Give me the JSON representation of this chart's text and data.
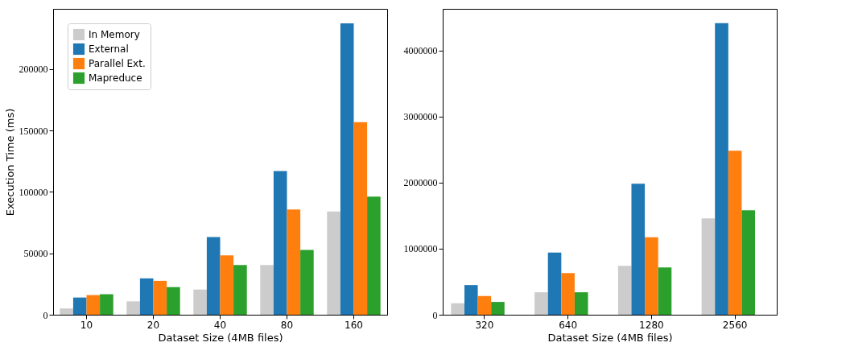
{
  "chart_data": [
    {
      "type": "bar",
      "xlabel": "Dataset Size (4MB files)",
      "ylabel": "Execution Time (ms)",
      "categories": [
        "10",
        "20",
        "40",
        "80",
        "160"
      ],
      "ylim": [
        0,
        249000
      ],
      "yticks": [
        0,
        50000,
        100000,
        150000,
        200000
      ],
      "grid": false,
      "legend": "top left",
      "series": [
        {
          "name": "In Memory",
          "color": "#cccccc",
          "values": [
            5100,
            10900,
            20500,
            40500,
            84000
          ]
        },
        {
          "name": "External",
          "color": "#1f77b4",
          "values": [
            14000,
            29600,
            63200,
            116900,
            237200
          ]
        },
        {
          "name": "Parallel Ext.",
          "color": "#ff7f0e",
          "values": [
            16000,
            27600,
            48300,
            85700,
            156800
          ]
        },
        {
          "name": "Mapreduce",
          "color": "#2ca02c",
          "values": [
            16700,
            22500,
            40500,
            52800,
            96200
          ]
        }
      ]
    },
    {
      "type": "bar",
      "xlabel": "Dataset Size (4MB files)",
      "categories": [
        "320",
        "640",
        "1280",
        "2560"
      ],
      "ylim": [
        0,
        4630000
      ],
      "yticks": [
        0,
        1000000,
        2000000,
        3000000,
        4000000
      ],
      "grid": false,
      "legend": "top left",
      "series": [
        {
          "name": "In Memory",
          "color": "#cccccc",
          "values": [
            174000,
            340000,
            740000,
            1460000
          ]
        },
        {
          "name": "External",
          "color": "#1f77b4",
          "values": [
            449000,
            942000,
            1982000,
            4413000
          ]
        },
        {
          "name": "Parallel Ext.",
          "color": "#ff7f0e",
          "values": [
            283000,
            631000,
            1173000,
            2484000
          ]
        },
        {
          "name": "Mapreduce",
          "color": "#2ca02c",
          "values": [
            194000,
            340000,
            716000,
            1582000
          ]
        }
      ]
    }
  ]
}
